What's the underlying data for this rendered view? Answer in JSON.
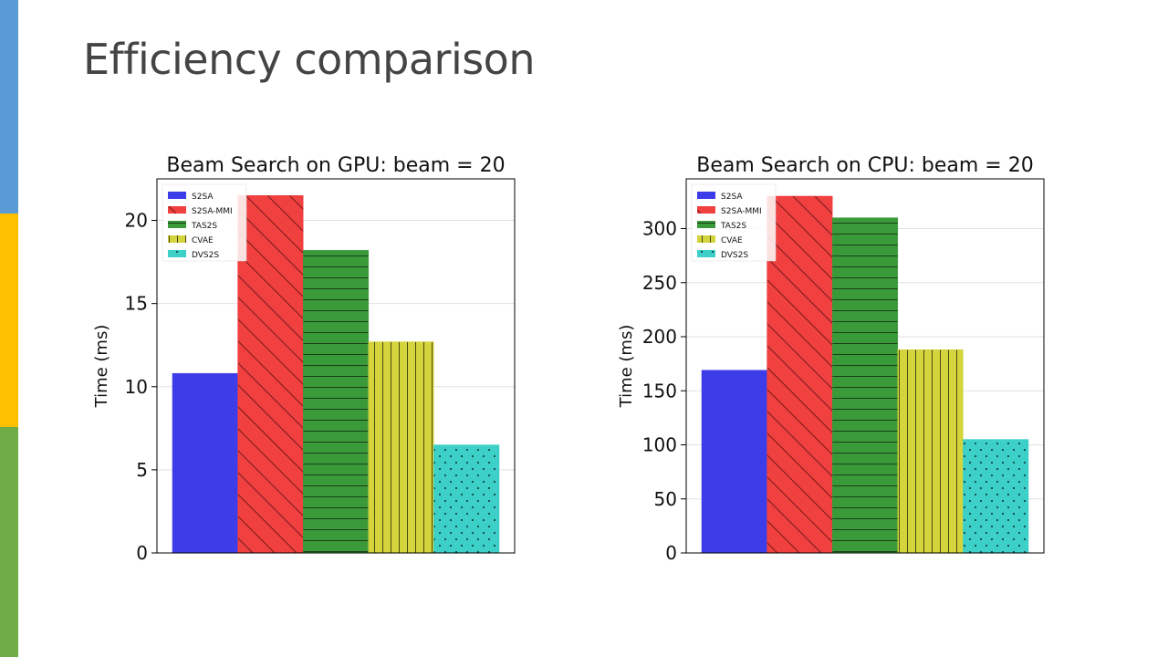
{
  "slide": {
    "title": "Efficiency comparison",
    "accent_colors": [
      "#5B9BD5",
      "#FFC000",
      "#70AD47"
    ]
  },
  "chart_data": [
    {
      "type": "bar",
      "title": "Beam Search on GPU: beam = 20",
      "xlabel": "",
      "ylabel": "Time (ms)",
      "ylim": [
        0,
        22.5
      ],
      "yticks": [
        0,
        5,
        10,
        15,
        20
      ],
      "grid": true,
      "legend": "top-left",
      "series": [
        {
          "name": "S2SA",
          "value": 10.8,
          "color": "#3c3ce8",
          "pattern": "none"
        },
        {
          "name": "S2SA-MMI",
          "value": 21.5,
          "color": "#f04040",
          "pattern": "diagonal"
        },
        {
          "name": "TAS2S",
          "value": 18.2,
          "color": "#3a9a3a",
          "pattern": "horizontal"
        },
        {
          "name": "CVAE",
          "value": 12.7,
          "color": "#d4d43c",
          "pattern": "vertical"
        },
        {
          "name": "DVS2S",
          "value": 6.5,
          "color": "#3cd0c8",
          "pattern": "dots"
        }
      ]
    },
    {
      "type": "bar",
      "title": "Beam Search on CPU: beam = 20",
      "xlabel": "",
      "ylabel": "Time (ms)",
      "ylim": [
        0,
        346
      ],
      "yticks": [
        0,
        50,
        100,
        150,
        200,
        250,
        300
      ],
      "grid": true,
      "legend": "top-left",
      "series": [
        {
          "name": "S2SA",
          "value": 169,
          "color": "#3c3ce8",
          "pattern": "none"
        },
        {
          "name": "S2SA-MMI",
          "value": 330,
          "color": "#f04040",
          "pattern": "diagonal"
        },
        {
          "name": "TAS2S",
          "value": 310,
          "color": "#3a9a3a",
          "pattern": "horizontal"
        },
        {
          "name": "CVAE",
          "value": 188,
          "color": "#d4d43c",
          "pattern": "vertical"
        },
        {
          "name": "DVS2S",
          "value": 105,
          "color": "#3cd0c8",
          "pattern": "dots"
        }
      ]
    }
  ]
}
